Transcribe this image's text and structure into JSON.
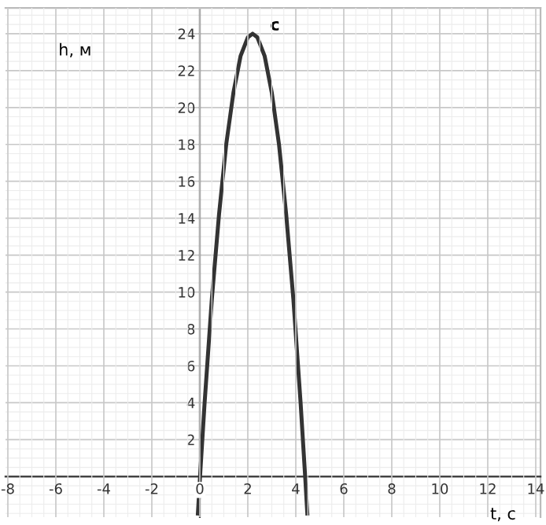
{
  "chart_data": {
    "type": "line",
    "xlabel": "t, с",
    "ylabel": "h, м",
    "x": [
      -0.08,
      0,
      0.2,
      0.5,
      0.8,
      1.1,
      1.4,
      1.7,
      2.0,
      2.2,
      2.4,
      2.7,
      3.0,
      3.3,
      3.6,
      3.9,
      4.2,
      4.4,
      4.48
    ],
    "series": [
      {
        "color": "#333333",
        "values": [
          -2.0,
          -0.2,
          4.0,
          9.6,
          14.2,
          18.0,
          20.8,
          22.8,
          23.8,
          24.0,
          23.8,
          22.8,
          20.8,
          18.0,
          14.2,
          9.6,
          4.0,
          -0.2,
          -2.0
        ]
      }
    ],
    "annotations": [
      {
        "text": "c",
        "x": 2.2,
        "y": 24
      }
    ],
    "xlim": [
      -8.1,
      14.2
    ],
    "ylim": [
      -2.2,
      25.4
    ],
    "xticks": [
      -8,
      -6,
      -4,
      -2,
      0,
      2,
      4,
      6,
      8,
      10,
      12,
      14
    ],
    "yticks": [
      2,
      4,
      6,
      8,
      10,
      12,
      14,
      16,
      18,
      20,
      22,
      24
    ],
    "grid": true,
    "marker": "none",
    "line_style": "solid"
  }
}
